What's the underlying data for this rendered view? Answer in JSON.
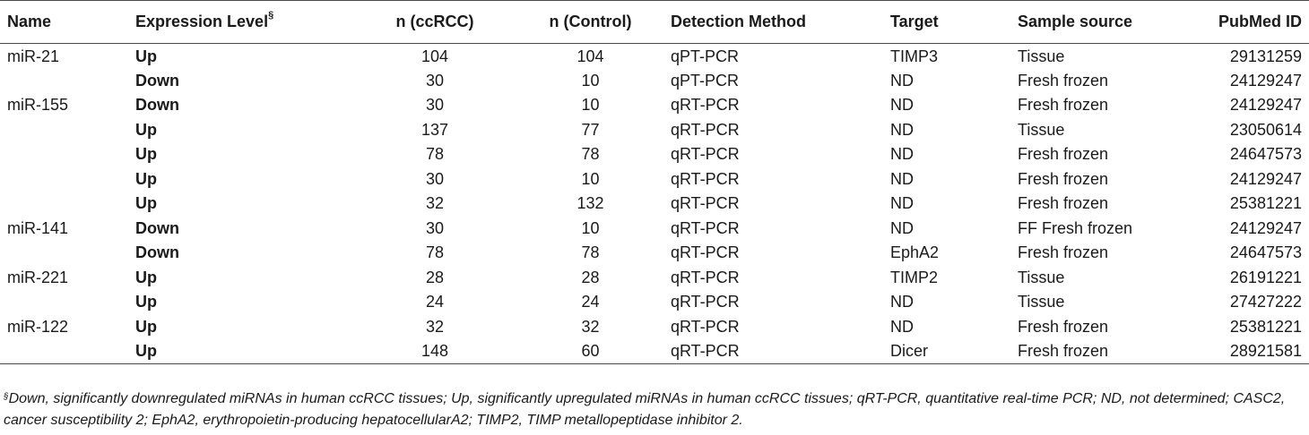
{
  "table": {
    "headers": {
      "name": "Name",
      "expression": "Expression Level",
      "expression_mark": "§",
      "n_ccrcc": "n (ccRCC)",
      "n_control": "n (Control)",
      "method": "Detection Method",
      "target": "Target",
      "sample": "Sample source",
      "pubmed": "PubMed ID"
    },
    "rows": [
      {
        "name": "miR-21",
        "expression": "Up",
        "n_ccrcc": "104",
        "n_control": "104",
        "method": "qPT-PCR",
        "target": "TIMP3",
        "sample": "Tissue",
        "pubmed": "29131259"
      },
      {
        "name": "",
        "expression": "Down",
        "n_ccrcc": "30",
        "n_control": "10",
        "method": "qPT-PCR",
        "target": "ND",
        "sample": "Fresh frozen",
        "pubmed": "24129247"
      },
      {
        "name": "miR-155",
        "expression": "Down",
        "n_ccrcc": "30",
        "n_control": "10",
        "method": "qRT-PCR",
        "target": "ND",
        "sample": "Fresh frozen",
        "pubmed": "24129247"
      },
      {
        "name": "",
        "expression": "Up",
        "n_ccrcc": "137",
        "n_control": "77",
        "method": "qRT-PCR",
        "target": "ND",
        "sample": "Tissue",
        "pubmed": "23050614"
      },
      {
        "name": "",
        "expression": "Up",
        "n_ccrcc": "78",
        "n_control": "78",
        "method": "qRT-PCR",
        "target": "ND",
        "sample": "Fresh frozen",
        "pubmed": "24647573"
      },
      {
        "name": "",
        "expression": "Up",
        "n_ccrcc": "30",
        "n_control": "10",
        "method": "qRT-PCR",
        "target": "ND",
        "sample": "Fresh frozen",
        "pubmed": "24129247"
      },
      {
        "name": "",
        "expression": "Up",
        "n_ccrcc": "32",
        "n_control": "132",
        "method": "qRT-PCR",
        "target": "ND",
        "sample": "Fresh frozen",
        "pubmed": "25381221"
      },
      {
        "name": "miR-141",
        "expression": "Down",
        "n_ccrcc": "30",
        "n_control": "10",
        "method": "qRT-PCR",
        "target": "ND",
        "sample": "FF Fresh frozen",
        "pubmed": "24129247"
      },
      {
        "name": "",
        "expression": "Down",
        "n_ccrcc": "78",
        "n_control": "78",
        "method": "qRT-PCR",
        "target": "EphA2",
        "sample": "Fresh frozen",
        "pubmed": "24647573"
      },
      {
        "name": "miR-221",
        "expression": "Up",
        "n_ccrcc": "28",
        "n_control": "28",
        "method": "qRT-PCR",
        "target": "TIMP2",
        "sample": "Tissue",
        "pubmed": "26191221"
      },
      {
        "name": "",
        "expression": "Up",
        "n_ccrcc": "24",
        "n_control": "24",
        "method": "qRT-PCR",
        "target": "ND",
        "sample": "Tissue",
        "pubmed": "27427222"
      },
      {
        "name": "miR-122",
        "expression": "Up",
        "n_ccrcc": "32",
        "n_control": "32",
        "method": "qRT-PCR",
        "target": "ND",
        "sample": "Fresh frozen",
        "pubmed": "25381221"
      },
      {
        "name": "",
        "expression": "Up",
        "n_ccrcc": "148",
        "n_control": "60",
        "method": "qRT-PCR",
        "target": "Dicer",
        "sample": "Fresh frozen",
        "pubmed": "28921581"
      }
    ]
  },
  "footnote": {
    "mark": "§",
    "text": "Down, significantly downregulated miRNAs in human ccRCC tissues; Up, significantly upregulated miRNAs in human ccRCC tissues; qRT-PCR, quantitative real-time PCR; ND, not determined; CASC2, cancer susceptibility 2; EphA2, erythropoietin-producing hepatocellularA2; TIMP2, TIMP metallopeptidase inhibitor 2."
  }
}
